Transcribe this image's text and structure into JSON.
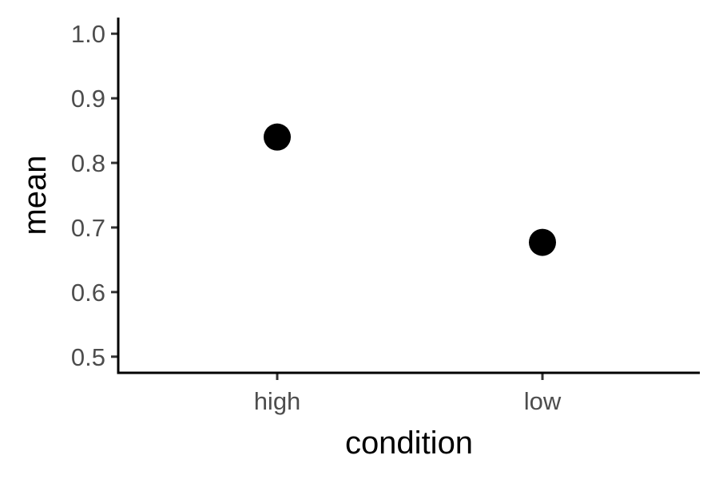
{
  "chart_data": {
    "type": "scatter",
    "title": "",
    "xlabel": "condition",
    "ylabel": "mean",
    "categories": [
      "high",
      "low"
    ],
    "values": [
      0.84,
      0.677
    ],
    "ylim": [
      0.475,
      1.025
    ],
    "yticks": [
      "0.5",
      "0.6",
      "0.7",
      "0.8",
      "0.9",
      "1.0"
    ],
    "grid": false,
    "legend": "none",
    "point_color": "#000000"
  }
}
